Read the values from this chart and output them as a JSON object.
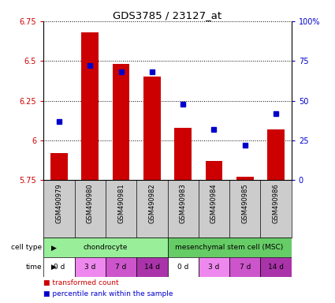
{
  "title": "GDS3785 / 23127_at",
  "samples": [
    "GSM490979",
    "GSM490980",
    "GSM490981",
    "GSM490982",
    "GSM490983",
    "GSM490984",
    "GSM490985",
    "GSM490986"
  ],
  "transformed_count": [
    5.92,
    6.68,
    6.48,
    6.4,
    6.08,
    5.87,
    5.77,
    6.07
  ],
  "percentile_rank": [
    37,
    72,
    68,
    68,
    48,
    32,
    22,
    42
  ],
  "ylim_left": [
    5.75,
    6.75
  ],
  "ylim_right": [
    0,
    100
  ],
  "yticks_left": [
    5.75,
    6.0,
    6.25,
    6.5,
    6.75
  ],
  "yticks_right": [
    0,
    25,
    50,
    75,
    100
  ],
  "ytick_labels_left": [
    "5.75",
    "6",
    "6.25",
    "6.5",
    "6.75"
  ],
  "ytick_labels_right": [
    "0",
    "25",
    "50",
    "75",
    "100%"
  ],
  "bar_color": "#cc0000",
  "dot_color": "#0000cc",
  "bar_bottom": 5.75,
  "cell_types": [
    {
      "label": "chondrocyte",
      "start": 0,
      "end": 4,
      "color": "#99ee99"
    },
    {
      "label": "mesenchymal stem cell (MSC)",
      "start": 4,
      "end": 8,
      "color": "#66cc66"
    }
  ],
  "time_labels": [
    "0 d",
    "3 d",
    "7 d",
    "14 d",
    "0 d",
    "3 d",
    "7 d",
    "14 d"
  ],
  "time_colors": [
    "#ffffff",
    "#ee88ee",
    "#cc55cc",
    "#aa33aa",
    "#ffffff",
    "#ee88ee",
    "#cc55cc",
    "#aa33aa"
  ],
  "sample_bg_color": "#cccccc",
  "legend_bar": "transformed count",
  "legend_dot": "percentile rank within the sample",
  "bar_width": 0.55,
  "background_color": "#ffffff"
}
